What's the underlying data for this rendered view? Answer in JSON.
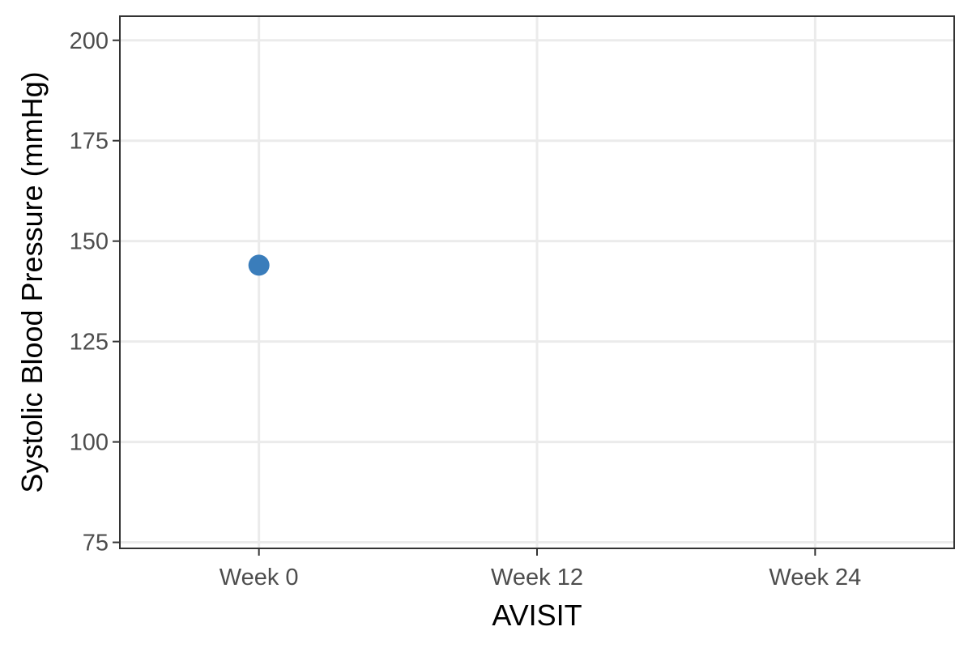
{
  "chart_data": {
    "type": "scatter",
    "xlabel": "AVISIT",
    "ylabel": "Systolic Blood Pressure (mmHg)",
    "categories": [
      "Week 0",
      "Week 12",
      "Week 24"
    ],
    "y_ticks": [
      75,
      100,
      125,
      150,
      175,
      200
    ],
    "ylim": [
      73.5,
      206
    ],
    "grid": true,
    "legend": "none",
    "points": [
      {
        "x": "Week 0",
        "y": 144
      }
    ],
    "colors": {
      "point": "#3a7dbb",
      "grid": "#ebebeb",
      "border": "#333333"
    }
  }
}
